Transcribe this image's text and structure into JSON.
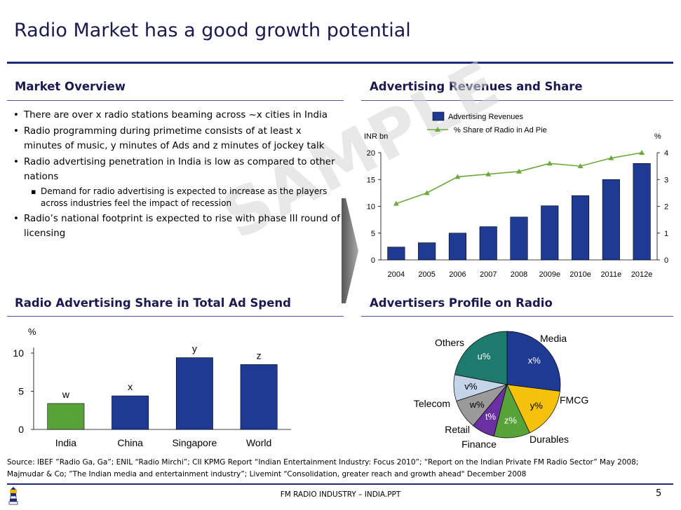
{
  "title": "Radio Market has a good growth potential",
  "market_overview": {
    "heading": "Market Overview",
    "bullets": [
      "There are over x radio stations beaming across ~x cities in India",
      "Radio programming during primetime consists of at least x minutes of music, y minutes of Ads and z minutes of jockey talk",
      "Radio advertising penetration in India is low as compared to other nations",
      "Radio’s national footprint is expected to rise with phase III round of licensing"
    ],
    "sub_bullet": "Demand for radio advertising is expected to increase as the players across industries feel the impact of recession"
  },
  "watermark": "SAMPLE",
  "source_text": "Source: IBEF ”Radio Ga, Ga”; ENIL “Radio Mirchi”; CII KPMG Report “Indian Entertainment Industry: Focus 2010”; “Report on the Indian Private FM Radio Sector” May 2008; Majmudar & Co; ”The Indian media and entertainment industry”; Livemint “Consolidation, greater reach and growth ahead\" December 2008",
  "footer": "FM RADIO INDUSTRY – INDIA.PPT",
  "page_number": "5",
  "colors": {
    "navy": "#1f2a78",
    "bar_blue": "#1f3a93",
    "green": "#58a23a",
    "line_green": "#6aaa3a"
  },
  "chart_data": [
    {
      "type": "bar",
      "title": "Advertising Revenues and Share",
      "categories": [
        "2004",
        "2005",
        "2006",
        "2007",
        "2008",
        "2009e",
        "2010e",
        "2011e",
        "2012e"
      ],
      "series": [
        {
          "name": "Advertising Revenues",
          "axis": "left",
          "values": [
            2.4,
            3.2,
            5.0,
            6.2,
            8.0,
            10.1,
            12.0,
            15.0,
            18.0
          ]
        },
        {
          "name": "% Share of Radio in Ad Pie",
          "axis": "right",
          "type": "line",
          "values": [
            2.1,
            2.5,
            3.1,
            3.2,
            3.3,
            3.6,
            3.5,
            3.8,
            4.0
          ]
        }
      ],
      "ylabel": "INR bn",
      "ylim": [
        0,
        20
      ],
      "yticks": [
        "0",
        "5",
        "10",
        "15",
        "20"
      ],
      "y2label": "%",
      "y2lim": [
        0,
        4
      ],
      "y2ticks": [
        "0",
        "1",
        "2",
        "3",
        "4"
      ]
    },
    {
      "type": "bar",
      "title": "Radio Advertising Share in Total Ad Spend",
      "categories": [
        "India",
        "China",
        "Singapore",
        "World"
      ],
      "values": [
        3.4,
        4.4,
        9.4,
        8.5
      ],
      "data_labels": [
        "w",
        "x",
        "y",
        "z"
      ],
      "ylabel": "%",
      "ylim": [
        0,
        10
      ],
      "yticks": [
        "0",
        "5",
        "10"
      ]
    },
    {
      "type": "pie",
      "title": "Advertisers Profile on Radio",
      "slices": [
        {
          "label": "Media",
          "value_label": "x%",
          "value": 27
        },
        {
          "label": "FMCG",
          "value_label": "y%",
          "value": 16
        },
        {
          "label": "Durables",
          "value_label": "z%",
          "value": 11
        },
        {
          "label": "Finance",
          "value_label": "t%",
          "value": 7
        },
        {
          "label": "Retail",
          "value_label": "w%",
          "value": 9
        },
        {
          "label": "Telecom",
          "value_label": "v%",
          "value": 8
        },
        {
          "label": "Others",
          "value_label": "u%",
          "value": 22
        }
      ]
    }
  ]
}
